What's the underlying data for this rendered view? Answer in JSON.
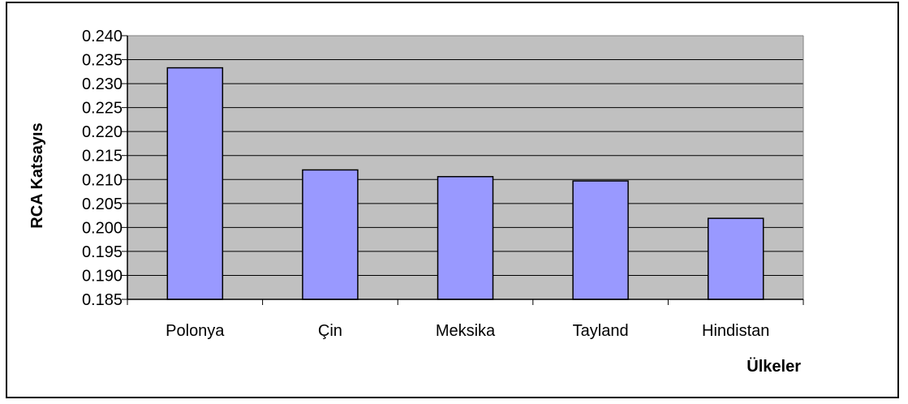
{
  "chart_data": {
    "type": "bar",
    "categories": [
      "Polonya",
      "Çin",
      "Meksika",
      "Tayland",
      "Hindistan"
    ],
    "values": [
      0.2333,
      0.212,
      0.2106,
      0.2097,
      0.2019
    ],
    "xlabel": "Ülkeler",
    "ylabel": "RCA Katsayıs",
    "ylim": [
      0.185,
      0.24
    ],
    "yticks": [
      "0.185",
      "0.190",
      "0.195",
      "0.200",
      "0.205",
      "0.210",
      "0.215",
      "0.220",
      "0.225",
      "0.230",
      "0.235",
      "0.240"
    ],
    "grid": true,
    "legend": "none",
    "colors": {
      "bar": "#9999ff",
      "plot_background": "#c0c0c0",
      "gridline": "#000000"
    }
  }
}
